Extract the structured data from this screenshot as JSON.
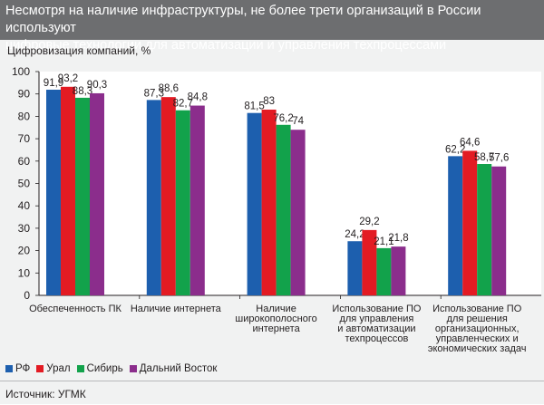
{
  "header": {
    "title_line1": "Несмотря на наличие инфраструктуры, не более трети организаций в России используют",
    "title_line2": "цифровые технологии для автоматизации и управления техпроцессами"
  },
  "source": "Источник: УГМК",
  "colors": {
    "РФ": "#1d5fae",
    "Урал": "#e31b23",
    "Сибирь": "#12a24b",
    "Дальний Восток": "#8b2d8c",
    "plot_bg": "#ffffff",
    "header_bg": "#6d6e70"
  },
  "chart_data": {
    "type": "bar",
    "title": "",
    "ylabel": "Цифровизация компаний, %",
    "xlabel": "",
    "ylim": [
      0,
      100
    ],
    "yticks": [
      0,
      10,
      20,
      30,
      40,
      50,
      60,
      70,
      80,
      90,
      100
    ],
    "grid": false,
    "legend_position": "bottom-left",
    "categories": [
      [
        "Обеспеченность ПК"
      ],
      [
        "Наличие интернета"
      ],
      [
        "Наличие",
        "широкополосного",
        "интернета"
      ],
      [
        "Использование ПО",
        "для управления",
        "и автоматизации",
        "техпроцессов"
      ],
      [
        "Использование ПО",
        "для решения",
        "организационных,",
        "управленческих и",
        "экономических задач"
      ]
    ],
    "series": [
      {
        "name": "РФ",
        "values": [
          91.9,
          87.3,
          81.5,
          24.2,
          62.2
        ],
        "labels": [
          "91,9",
          "87,3",
          "81,5",
          "24,2",
          "62,2"
        ]
      },
      {
        "name": "Урал",
        "values": [
          93.2,
          88.6,
          83,
          29.2,
          64.6
        ],
        "labels": [
          "93,2",
          "88,6",
          "83",
          "29,2",
          "64,6"
        ]
      },
      {
        "name": "Сибирь",
        "values": [
          88.3,
          82.7,
          76.2,
          21.1,
          58.7
        ],
        "labels": [
          "88,3",
          "82,7",
          "76,2",
          "21,1",
          "58,7"
        ]
      },
      {
        "name": "Дальний Восток",
        "values": [
          90.3,
          84.8,
          74,
          21.8,
          57.6
        ],
        "labels": [
          "90,3",
          "84,8",
          "74",
          "21,8",
          "57,6"
        ]
      }
    ]
  }
}
